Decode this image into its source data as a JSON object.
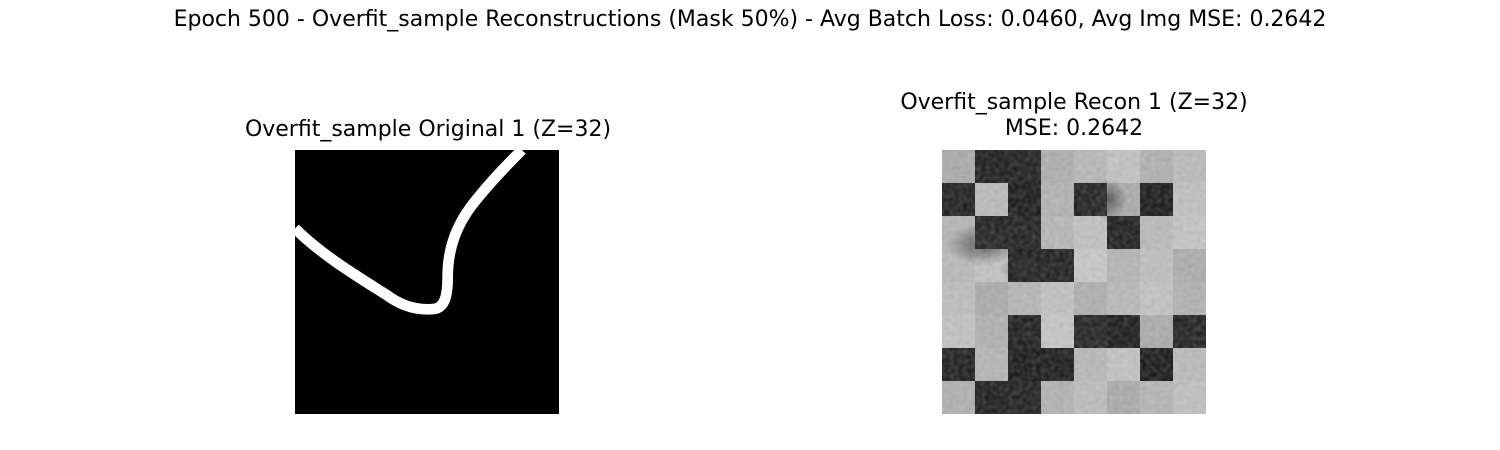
{
  "suptitle": "Epoch 500 - Overfit_sample Reconstructions (Mask 50%) - Avg Batch Loss: 0.0460, Avg Img MSE: 0.2642",
  "panels": [
    {
      "title": "Overfit_sample Original 1 (Z=32)",
      "subtitle": ""
    },
    {
      "title": "Overfit_sample Recon 1 (Z=32)",
      "subtitle": "MSE: 0.2642"
    }
  ],
  "recon_grid": {
    "size": 8,
    "dark_cells": [
      [
        0,
        1
      ],
      [
        0,
        2
      ],
      [
        1,
        0
      ],
      [
        1,
        2
      ],
      [
        1,
        4
      ],
      [
        1,
        6
      ],
      [
        2,
        1
      ],
      [
        2,
        2
      ],
      [
        2,
        5
      ],
      [
        3,
        2
      ],
      [
        3,
        3
      ],
      [
        5,
        2
      ],
      [
        5,
        4
      ],
      [
        5,
        5
      ],
      [
        5,
        7
      ],
      [
        6,
        0
      ],
      [
        6,
        2
      ],
      [
        6,
        3
      ],
      [
        6,
        6
      ],
      [
        7,
        1
      ],
      [
        7,
        2
      ]
    ]
  },
  "colors": {
    "background": "#000000",
    "stroke": "#ffffff",
    "light_tile": "#b8b8b8",
    "dark_tile": "#111111"
  }
}
